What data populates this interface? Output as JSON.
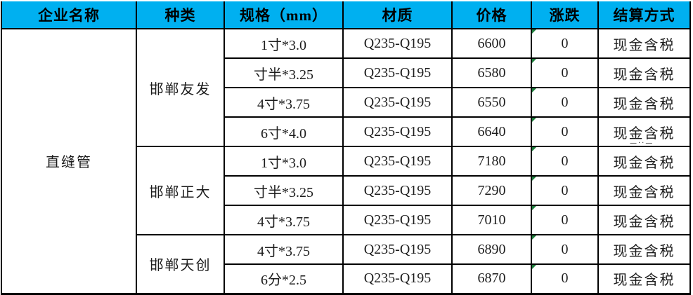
{
  "colors": {
    "header_bg": "#00b0f0",
    "grid_border": "#000000",
    "error_indicator_green": "#1e7d3c",
    "text": "#1c1c1c"
  },
  "header": {
    "columns": [
      "企业名称",
      "种类",
      "规格（mm）",
      "材质",
      "价格",
      "涨跌",
      "结算方式"
    ]
  },
  "company": "直缝管",
  "groups": [
    {
      "vendor": "邯郸友发",
      "rows": [
        {
          "spec": "1寸*3.0",
          "material": "Q235-Q195",
          "price": "6600",
          "change": "0",
          "settlement": "现金含税"
        },
        {
          "spec": "寸半*3.25",
          "material": "Q235-Q195",
          "price": "6580",
          "change": "0",
          "settlement": "现金含税"
        },
        {
          "spec": "4寸*3.75",
          "material": "Q235-Q195",
          "price": "6550",
          "change": "0",
          "settlement": "现金含税"
        },
        {
          "spec": "6寸*4.0",
          "material": "Q235-Q195",
          "price": "6640",
          "change": "0",
          "settlement": "现金含税"
        }
      ]
    },
    {
      "vendor": "邯郸正大",
      "rows": [
        {
          "spec": "1寸*3.0",
          "material": "Q235-Q195",
          "price": "7180",
          "change": "0",
          "settlement": "现金含税"
        },
        {
          "spec": "寸半*3.25",
          "material": "Q235-Q195",
          "price": "7290",
          "change": "0",
          "settlement": "现金含税"
        },
        {
          "spec": "4寸*3.75",
          "material": "Q235-Q195",
          "price": "7010",
          "change": "0",
          "settlement": "现金含税"
        }
      ]
    },
    {
      "vendor": "邯郸天创",
      "rows": [
        {
          "spec": "4寸*3.75",
          "material": "Q235-Q195",
          "price": "6890",
          "change": "0",
          "settlement": "现金含税"
        },
        {
          "spec": "6分*2.5",
          "material": "Q235-Q195",
          "price": "6870",
          "change": "0",
          "settlement": "现金含税"
        }
      ]
    }
  ],
  "artifact": "—··—"
}
